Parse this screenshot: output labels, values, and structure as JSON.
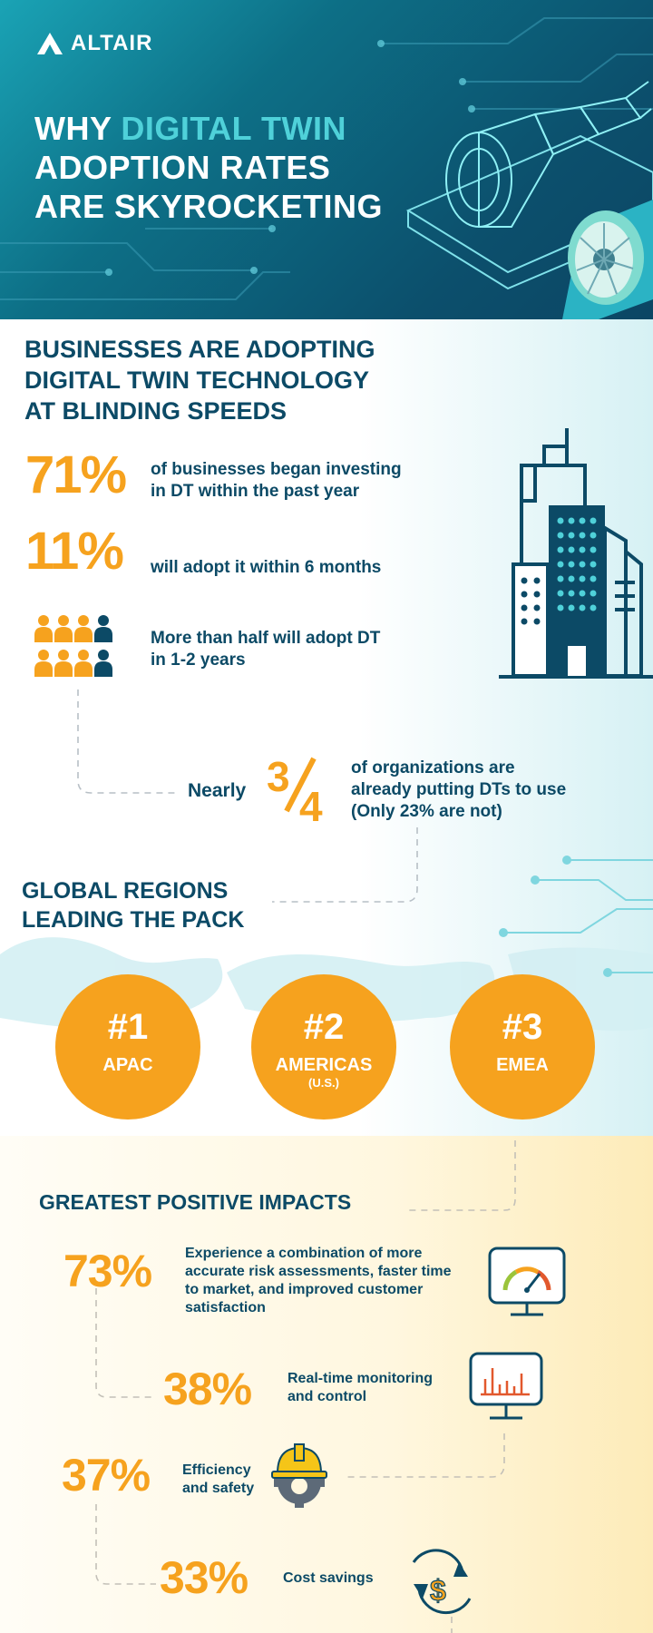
{
  "brand": {
    "name": "ALTAIR"
  },
  "header": {
    "title_line1_a": "WHY ",
    "title_line1_b": "DIGITAL TWIN",
    "title_line2": "ADOPTION RATES",
    "title_line3": "ARE SKYROCKETING"
  },
  "adoption": {
    "title_lines": [
      "BUSINESSES ARE ADOPTING",
      "DIGITAL TWIN TECHNOLOGY",
      "AT BLINDING SPEEDS"
    ],
    "stats": [
      {
        "value": "71%",
        "text_lines": [
          "of businesses began investing",
          "in DT within the past year"
        ]
      },
      {
        "value": "11%",
        "text_lines": [
          "will adopt it within 6 months"
        ]
      },
      {
        "value": "",
        "text_lines": [
          "More than half will adopt DT",
          "in 1-2 years"
        ]
      }
    ],
    "people_icon": {
      "total": 8,
      "highlighted": 6
    },
    "nearly": {
      "label": "Nearly",
      "numerator": "3",
      "denominator": "4",
      "text_lines": [
        "of organizations are",
        "already putting DTs to use",
        "(Only 23% are not)"
      ]
    }
  },
  "regions": {
    "title_lines": [
      "GLOBAL REGIONS",
      "LEADING THE PACK"
    ],
    "items": [
      {
        "rank": "#1",
        "name": "APAC",
        "sub": ""
      },
      {
        "rank": "#2",
        "name": "AMERICAS",
        "sub": "(U.S.)"
      },
      {
        "rank": "#3",
        "name": "EMEA",
        "sub": ""
      }
    ]
  },
  "impacts": {
    "title": "GREATEST POSITIVE IMPACTS",
    "items": [
      {
        "value": "73%",
        "text_lines": [
          "Experience a combination of more",
          "accurate risk assessments, faster time",
          "to market, and improved customer",
          "satisfaction"
        ],
        "icon": "gauge-monitor-icon"
      },
      {
        "value": "38%",
        "text_lines": [
          "Real-time monitoring",
          "and control"
        ],
        "icon": "chart-monitor-icon"
      },
      {
        "value": "37%",
        "text_lines": [
          "Efficiency",
          "and safety"
        ],
        "icon": "hardhat-gear-icon"
      },
      {
        "value": "33%",
        "text_lines": [
          "Cost savings"
        ],
        "icon": "dollar-cycle-icon"
      }
    ]
  },
  "colors": {
    "navy": "#0c4a66",
    "orange": "#f6a21e",
    "teal": "#4fd1d9"
  }
}
